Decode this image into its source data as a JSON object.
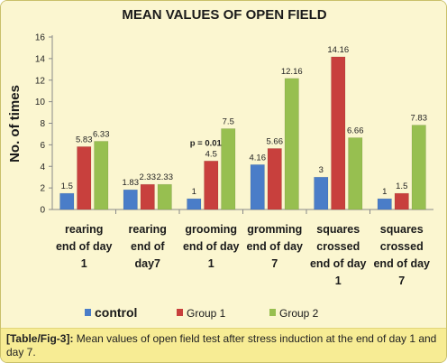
{
  "chart_data": {
    "type": "bar",
    "title": "MEAN VALUES OF OPEN FIELD",
    "ylabel": "No. of times",
    "xlabel": "",
    "ylim": [
      0,
      16
    ],
    "yticks": [
      0,
      2,
      4,
      6,
      8,
      10,
      12,
      14,
      16
    ],
    "grid": false,
    "legend_position": "bottom",
    "categories": [
      [
        "rearing",
        "end of day",
        "1"
      ],
      [
        "rearing",
        "end  of",
        "day7"
      ],
      [
        "grooming",
        "end of day",
        "1"
      ],
      [
        "gromming",
        "end of day",
        "7"
      ],
      [
        "squares",
        "crossed",
        "end of day",
        "1"
      ],
      [
        "squares",
        "crossed",
        "end of day",
        "7"
      ]
    ],
    "series": [
      {
        "name": "control",
        "color": "#4a7dc8",
        "values": [
          1.5,
          1.83,
          1,
          4.16,
          3,
          1
        ],
        "labels": [
          "1.5",
          "1.83",
          "1",
          "4.16",
          "3",
          "1"
        ]
      },
      {
        "name": "Group 1",
        "color": "#c8403d",
        "values": [
          5.83,
          2.33,
          4.5,
          5.66,
          14.16,
          1.5
        ],
        "labels": [
          "5.83",
          "2.33",
          "4.5",
          "5.66",
          "14.16",
          "1.5"
        ]
      },
      {
        "name": "Group 2",
        "color": "#97bf50",
        "values": [
          6.33,
          2.33,
          7.5,
          12.16,
          6.66,
          7.83
        ],
        "labels": [
          "6.33",
          "2.33",
          "7.5",
          "12.16",
          "6.66",
          "7.83"
        ]
      }
    ],
    "annotations": [
      {
        "text": "p = 0.01",
        "category_index": 2
      }
    ]
  },
  "caption": {
    "ref": "[Table/Fig-3]:",
    "text": " Mean values of open field test after stress induction at the end of day 1 and day 7."
  }
}
